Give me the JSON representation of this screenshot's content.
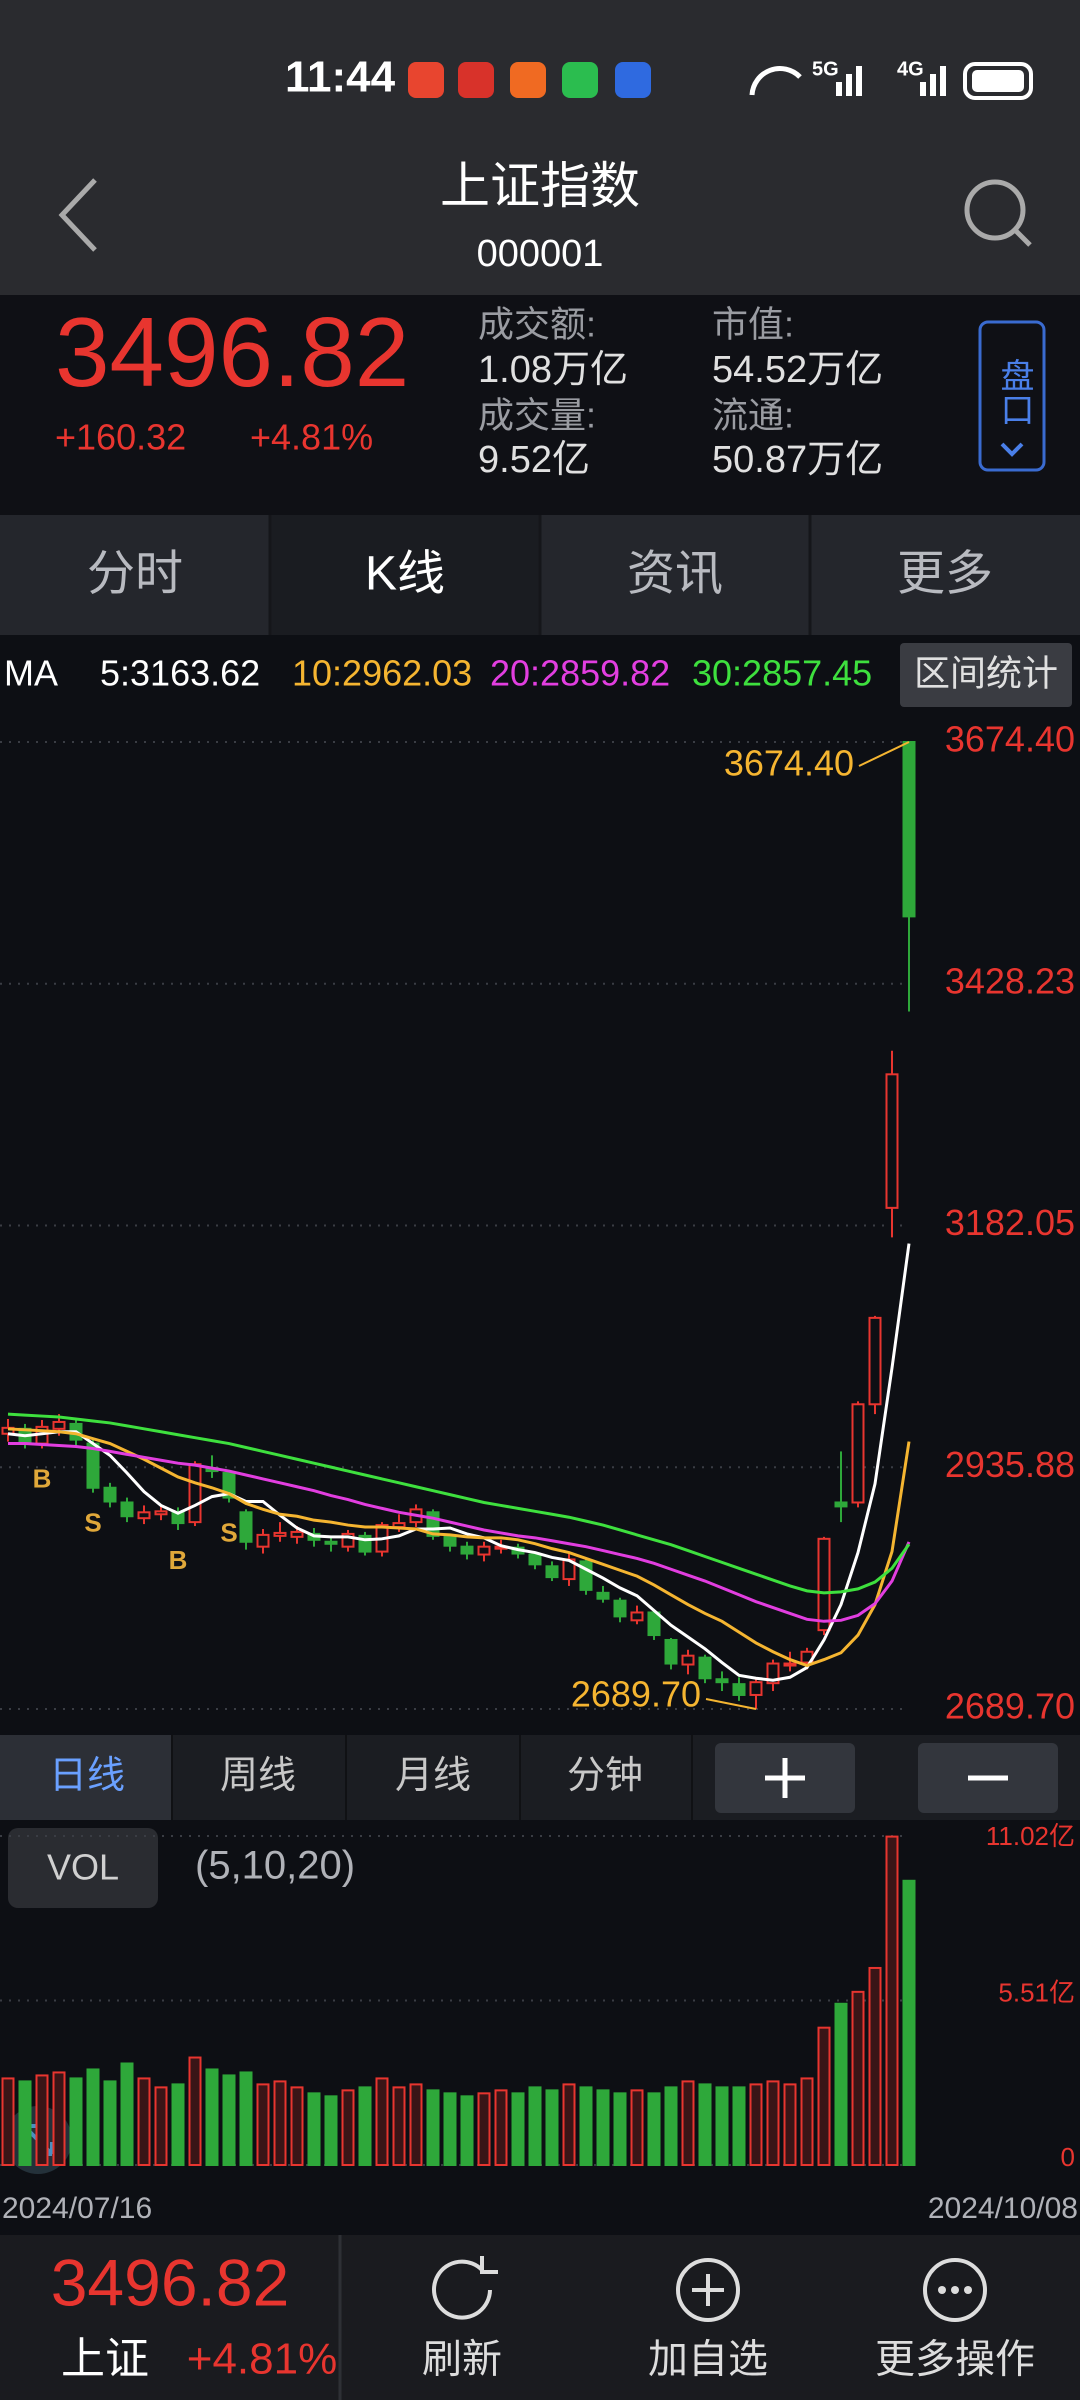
{
  "status_bar": {
    "time": "11:44",
    "network": [
      "5G",
      "4G"
    ]
  },
  "header": {
    "title": "上证指数",
    "code": "000001"
  },
  "quote": {
    "price": "3496.82",
    "change": "+160.32",
    "change_pct": "+4.81%",
    "stats": [
      {
        "label": "成交额:",
        "value": "1.08万亿"
      },
      {
        "label": "市值:",
        "value": "54.52万亿"
      },
      {
        "label": "成交量:",
        "value": "9.52亿"
      },
      {
        "label": "流通:",
        "value": "50.87万亿"
      }
    ],
    "button": "盘口"
  },
  "tabs": [
    "分时",
    "K线",
    "资讯",
    "更多"
  ],
  "range_button": "区间统计",
  "chart_data": [
    {
      "type": "candlestick",
      "legend_title": "MA",
      "up_color": "#e8352f",
      "down_color": "#2ea83a",
      "open": [
        2970,
        2975,
        2960,
        2975,
        2980,
        2960,
        2915,
        2900,
        2884,
        2888,
        2890,
        2880,
        2935,
        2930,
        2890,
        2855,
        2866,
        2865,
        2868,
        2860,
        2855,
        2866,
        2850,
        2875,
        2880,
        2890,
        2865,
        2855,
        2847,
        2855,
        2854,
        2847,
        2835,
        2822,
        2840,
        2808,
        2800,
        2780,
        2788,
        2760,
        2735,
        2742,
        2720,
        2715,
        2704,
        2716,
        2735,
        2737,
        2770,
        2900,
        2900,
        3000,
        3200,
        3674.4
      ],
      "high": [
        2985,
        2980,
        2984,
        2990,
        2985,
        2965,
        2920,
        2905,
        2897,
        2898,
        2895,
        2942,
        2948,
        2932,
        2893,
        2873,
        2880,
        2876,
        2874,
        2866,
        2872,
        2870,
        2880,
        2888,
        2898,
        2893,
        2868,
        2860,
        2860,
        2862,
        2858,
        2850,
        2840,
        2848,
        2842,
        2815,
        2803,
        2795,
        2790,
        2762,
        2750,
        2745,
        2728,
        2722,
        2722,
        2740,
        2748,
        2752,
        2865,
        2952,
        3003,
        3090,
        3360,
        3674.4
      ],
      "low": [
        2962,
        2955,
        2955,
        2968,
        2958,
        2910,
        2895,
        2880,
        2878,
        2882,
        2872,
        2876,
        2925,
        2900,
        2852,
        2848,
        2860,
        2858,
        2855,
        2850,
        2850,
        2846,
        2845,
        2870,
        2875,
        2862,
        2850,
        2842,
        2840,
        2848,
        2843,
        2832,
        2820,
        2815,
        2806,
        2798,
        2778,
        2776,
        2760,
        2730,
        2725,
        2716,
        2708,
        2698,
        2689.7,
        2708,
        2728,
        2730,
        2765,
        2880,
        2895,
        2990,
        3170,
        3400
      ],
      "close": [
        2976,
        2962,
        2977,
        2982,
        2964,
        2915,
        2901,
        2886,
        2890,
        2891,
        2879,
        2939,
        2932,
        2905,
        2860,
        2867,
        2869,
        2870,
        2862,
        2858,
        2868,
        2850,
        2877,
        2879,
        2893,
        2866,
        2856,
        2848,
        2855,
        2855,
        2848,
        2837,
        2824,
        2842,
        2811,
        2802,
        2784,
        2788,
        2765,
        2736,
        2744,
        2721,
        2717,
        2704,
        2717,
        2736,
        2736,
        2748,
        2863,
        2896,
        3000,
        3088,
        3336,
        3496.82
      ],
      "series": [
        {
          "name": "5:3163.62",
          "color": "#ffffff",
          "values": [
            2970,
            2968,
            2970,
            2972,
            2972,
            2960,
            2948,
            2930,
            2911,
            2897,
            2889,
            2897,
            2906,
            2909,
            2901,
            2901,
            2887,
            2874,
            2866,
            2865,
            2865,
            2862,
            2863,
            2866,
            2873,
            2873,
            2874,
            2868,
            2864,
            2856,
            2852,
            2849,
            2844,
            2841,
            2832,
            2823,
            2813,
            2805,
            2790,
            2775,
            2763,
            2751,
            2737,
            2724,
            2721,
            2719,
            2722,
            2732,
            2760,
            2796,
            2849,
            2919,
            3037,
            3163.62
          ]
        },
        {
          "name": "10:2962.03",
          "color": "#f5b531",
          "values": [
            2975,
            2974,
            2973,
            2972,
            2970,
            2965,
            2960,
            2952,
            2944,
            2935,
            2926,
            2920,
            2915,
            2909,
            2899,
            2893,
            2888,
            2886,
            2882,
            2880,
            2877,
            2875,
            2875,
            2874,
            2873,
            2868,
            2867,
            2865,
            2864,
            2864,
            2862,
            2858,
            2853,
            2849,
            2843,
            2837,
            2831,
            2825,
            2816,
            2806,
            2796,
            2787,
            2779,
            2768,
            2757,
            2748,
            2740,
            2734,
            2740,
            2747,
            2765,
            2796,
            2850,
            2962.03
          ]
        },
        {
          "name": "20:2859.82",
          "color": "#e23ee0",
          "values": [
            2960,
            2960,
            2959,
            2958,
            2957,
            2955,
            2952,
            2949,
            2946,
            2943,
            2940,
            2938,
            2935,
            2932,
            2928,
            2924,
            2920,
            2916,
            2912,
            2907,
            2903,
            2898,
            2894,
            2890,
            2887,
            2884,
            2880,
            2876,
            2872,
            2869,
            2866,
            2864,
            2861,
            2858,
            2855,
            2851,
            2847,
            2843,
            2838,
            2832,
            2826,
            2820,
            2813,
            2806,
            2799,
            2793,
            2787,
            2781,
            2779,
            2780,
            2785,
            2797,
            2820,
            2859.82
          ]
        },
        {
          "name": "30:2857.45",
          "color": "#3ee03e",
          "values": [
            2990,
            2989,
            2988,
            2987,
            2985,
            2983,
            2981,
            2978,
            2975,
            2972,
            2969,
            2966,
            2963,
            2960,
            2956,
            2952,
            2948,
            2944,
            2940,
            2936,
            2932,
            2928,
            2924,
            2920,
            2916,
            2912,
            2908,
            2904,
            2900,
            2897,
            2894,
            2891,
            2888,
            2885,
            2881,
            2877,
            2872,
            2867,
            2862,
            2857,
            2851,
            2845,
            2839,
            2833,
            2827,
            2821,
            2815,
            2810,
            2808,
            2809,
            2812,
            2819,
            2833,
            2857.45
          ]
        }
      ],
      "signals": [
        null,
        null,
        "B",
        null,
        null,
        "S",
        null,
        null,
        null,
        null,
        "B",
        null,
        null,
        "S",
        null,
        null,
        null,
        null,
        null,
        null,
        null,
        null,
        null,
        null,
        null,
        null,
        null,
        null,
        null,
        null,
        null,
        null,
        null,
        null,
        null,
        null,
        null,
        null,
        null,
        null,
        null,
        null,
        null,
        null,
        null,
        null,
        null,
        null,
        null,
        null,
        null,
        null,
        null,
        null
      ],
      "max_label": "3674.40",
      "min_label": "2689.70",
      "ylim": [
        2689.7,
        3674.4
      ],
      "yticks": [
        {
          "value": 3674.4,
          "label": "3674.40"
        },
        3428.23,
        3182.05,
        2935.88,
        {
          "value": 2689.7,
          "label": "2689.70"
        }
      ],
      "grid": true
    },
    {
      "type": "bar",
      "label": "VOL",
      "params": "(5,10,20)",
      "categories": [
        "2024/07/16",
        null,
        null,
        null,
        null,
        null,
        null,
        null,
        null,
        null,
        null,
        null,
        null,
        null,
        null,
        null,
        null,
        null,
        null,
        null,
        null,
        null,
        null,
        null,
        null,
        null,
        null,
        null,
        null,
        null,
        null,
        null,
        null,
        null,
        null,
        null,
        null,
        null,
        null,
        null,
        null,
        null,
        null,
        null,
        null,
        null,
        null,
        null,
        null,
        null,
        null,
        null,
        null,
        "2024/10/08"
      ],
      "values": [
        2.9,
        2.8,
        3.0,
        3.1,
        2.9,
        3.2,
        2.8,
        3.4,
        2.9,
        2.6,
        2.7,
        3.6,
        3.2,
        3.0,
        3.1,
        2.7,
        2.8,
        2.6,
        2.4,
        2.3,
        2.5,
        2.6,
        2.9,
        2.6,
        2.7,
        2.5,
        2.4,
        2.3,
        2.4,
        2.5,
        2.4,
        2.6,
        2.5,
        2.7,
        2.6,
        2.5,
        2.4,
        2.5,
        2.4,
        2.6,
        2.8,
        2.7,
        2.6,
        2.6,
        2.7,
        2.8,
        2.7,
        2.9,
        4.6,
        5.4,
        5.8,
        6.6,
        11.0,
        9.52
      ],
      "ylim": [
        0,
        11.02
      ],
      "yticks": [
        {
          "value": 11.02,
          "label": "11.02亿"
        },
        {
          "value": 5.51,
          "label": "5.51亿"
        },
        0
      ],
      "grid": true
    }
  ],
  "periods": [
    "日线",
    "周线",
    "月线",
    "分钟"
  ],
  "bottom_bar": {
    "price": "3496.82",
    "name": "上证",
    "change_pct": "+4.81%",
    "actions": [
      "刷新",
      "加自选",
      "更多操作"
    ]
  }
}
